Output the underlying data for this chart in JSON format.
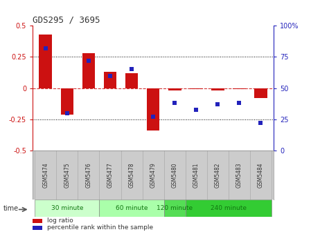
{
  "title": "GDS295 / 3695",
  "samples": [
    "GSM5474",
    "GSM5475",
    "GSM5476",
    "GSM5477",
    "GSM5478",
    "GSM5479",
    "GSM5480",
    "GSM5481",
    "GSM5482",
    "GSM5483",
    "GSM5484"
  ],
  "log_ratio": [
    0.43,
    -0.21,
    0.28,
    0.13,
    0.12,
    -0.34,
    -0.02,
    -0.01,
    -0.02,
    -0.01,
    -0.08
  ],
  "percentile_rank": [
    82,
    30,
    72,
    60,
    65,
    27,
    38,
    33,
    37,
    38,
    22
  ],
  "ylim_left": [
    -0.5,
    0.5
  ],
  "ylim_right": [
    0,
    100
  ],
  "yticks_left": [
    -0.5,
    -0.25,
    0,
    0.25,
    0.5
  ],
  "yticks_right": [
    0,
    25,
    50,
    75,
    100
  ],
  "bar_color": "#cc1111",
  "dot_color": "#2222bb",
  "time_groups": [
    {
      "label": "30 minute",
      "start": 0,
      "end": 3,
      "color": "#ccffcc"
    },
    {
      "label": "60 minute",
      "start": 3,
      "end": 6,
      "color": "#aaffaa"
    },
    {
      "label": "120 minute",
      "start": 6,
      "end": 7,
      "color": "#55dd55"
    },
    {
      "label": "240 minute",
      "start": 7,
      "end": 11,
      "color": "#33cc33"
    }
  ],
  "time_label": "time",
  "legend_log_ratio": "log ratio",
  "legend_percentile": "percentile rank within the sample",
  "left_axis_color": "#cc1111",
  "right_axis_color": "#2222bb",
  "background_color": "#ffffff",
  "plot_bg_color": "#ffffff",
  "label_bg_color": "#cccccc",
  "bar_width": 0.6
}
